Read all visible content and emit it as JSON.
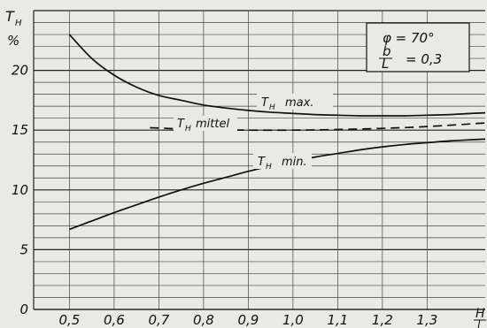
{
  "chart_data": {
    "type": "line",
    "title": "",
    "ylabel": "T_H %",
    "xlabel": "H/l",
    "xlim": [
      0.42,
      1.43
    ],
    "ylim": [
      0,
      25
    ],
    "x_ticks": [
      0.5,
      0.6,
      0.7,
      0.8,
      0.9,
      1.0,
      1.1,
      1.2,
      1.3
    ],
    "x_tick_labels": [
      "0,5",
      "0,6",
      "0,7",
      "0,8",
      "0,9",
      "1,0",
      "1,1",
      "1,2",
      "1,3"
    ],
    "y_ticks": [
      0,
      5,
      10,
      15,
      20
    ],
    "y_tick_labels": [
      "0",
      "5",
      "10",
      "15",
      "20"
    ],
    "grid": true,
    "parameters": {
      "phi_label": "φ = 70°",
      "ratio_numerator": "b",
      "ratio_denominator": "L",
      "ratio_value": "= 0,3"
    },
    "series": [
      {
        "name": "T_H max.",
        "label_main": "T",
        "label_sub": "H",
        "label_suffix": "max.",
        "style": "solid",
        "x": [
          0.5,
          0.55,
          0.6,
          0.65,
          0.7,
          0.75,
          0.8,
          0.85,
          0.9,
          0.95,
          1.0,
          1.05,
          1.1,
          1.15,
          1.2,
          1.25,
          1.3,
          1.35,
          1.4,
          1.43
        ],
        "y": [
          23.0,
          21.0,
          19.6,
          18.6,
          17.9,
          17.5,
          17.1,
          16.85,
          16.65,
          16.5,
          16.4,
          16.3,
          16.25,
          16.2,
          16.2,
          16.2,
          16.25,
          16.3,
          16.4,
          16.45
        ]
      },
      {
        "name": "T_H mittel",
        "label_main": "T",
        "label_sub": "H",
        "label_suffix": "mittel",
        "style": "dashed",
        "x": [
          0.68,
          0.75,
          0.8,
          0.9,
          1.0,
          1.1,
          1.2,
          1.3,
          1.43
        ],
        "y": [
          15.2,
          15.1,
          15.05,
          15.0,
          15.0,
          15.05,
          15.15,
          15.3,
          15.6
        ]
      },
      {
        "name": "T_H min.",
        "label_main": "T",
        "label_sub": "H",
        "label_suffix": "min.",
        "style": "solid",
        "x": [
          0.5,
          0.55,
          0.6,
          0.65,
          0.7,
          0.75,
          0.8,
          0.85,
          0.9,
          0.95,
          1.0,
          1.05,
          1.1,
          1.15,
          1.2,
          1.25,
          1.3,
          1.35,
          1.4,
          1.43
        ],
        "y": [
          6.7,
          7.4,
          8.1,
          8.75,
          9.4,
          10.0,
          10.55,
          11.05,
          11.55,
          12.0,
          12.4,
          12.75,
          13.05,
          13.35,
          13.6,
          13.8,
          13.95,
          14.1,
          14.2,
          14.25
        ]
      }
    ]
  }
}
